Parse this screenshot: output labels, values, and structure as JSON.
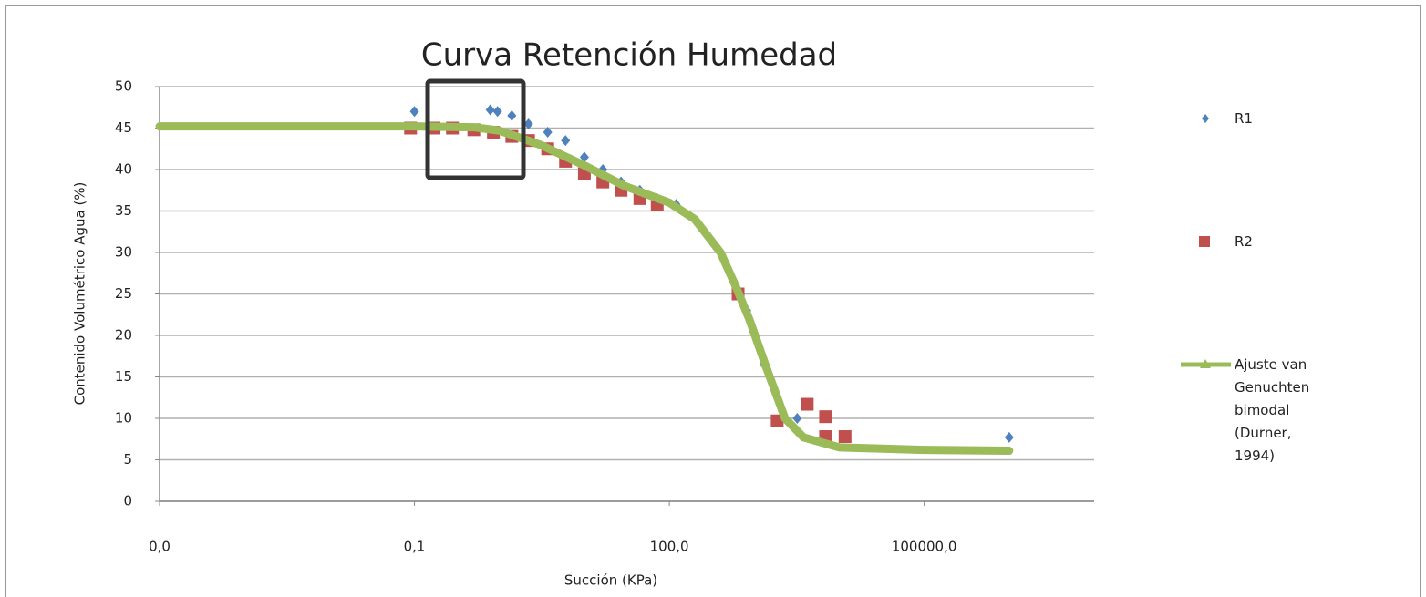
{
  "chart_data": {
    "type": "scatter",
    "title": "Curva Retención Humedad",
    "x_label": "Succión (KPa)",
    "y_label": "Contenido Volumétrico Agua (%)",
    "x_log": true,
    "xlim": [
      0.0001,
      10000000
    ],
    "ylim": [
      0,
      50
    ],
    "xticks": [
      {
        "value": 0.0001,
        "label": "0,0"
      },
      {
        "value": 0.1,
        "label": "0,1"
      },
      {
        "value": 100,
        "label": "100,0"
      },
      {
        "value": 100000,
        "label": "100000,0"
      }
    ],
    "yticks": [
      0,
      5,
      10,
      15,
      20,
      25,
      30,
      35,
      40,
      45,
      50
    ],
    "grid": true,
    "series": [
      {
        "name": "R1",
        "color": "#4f81bd",
        "style": "diamond",
        "x": [
          0.1,
          0.78,
          0.95,
          1.4,
          2.2,
          3.7,
          6,
          10,
          16.5,
          27,
          45,
          72,
          120,
          815,
          1300,
          1400,
          3200,
          1000000
        ],
        "values": [
          47,
          47.2,
          47,
          46.5,
          45.5,
          44.5,
          43.5,
          41.5,
          40,
          38.5,
          37.5,
          36.5,
          35.8,
          23,
          16.5,
          16,
          10,
          7.7
        ]
      },
      {
        "name": "R2",
        "color": "#c0504d",
        "style": "square",
        "x": [
          0.09,
          0.17,
          0.28,
          0.5,
          0.85,
          1.4,
          2.2,
          3.7,
          6,
          10,
          16.5,
          27,
          45,
          72,
          645,
          1860,
          4200,
          6900,
          6900,
          11700
        ],
        "values": [
          45,
          45,
          45,
          44.8,
          44.5,
          44,
          43.5,
          42.5,
          41,
          39.5,
          38.5,
          37.5,
          36.5,
          35.8,
          25,
          9.7,
          11.7,
          10.2,
          7.8,
          7.8
        ]
      },
      {
        "name": "Ajuste van Genuchten bimodal (Durner, 1994)",
        "color": "#9bbb59",
        "style": "line",
        "x": [
          0.0001,
          0.001,
          0.01,
          0.1,
          0.5,
          1,
          3,
          10,
          30,
          100,
          200,
          400,
          600,
          870,
          1400,
          2300,
          3800,
          10000,
          100000,
          1000000
        ],
        "values": [
          45.2,
          45.2,
          45.2,
          45.2,
          45.1,
          44.7,
          43,
          40.5,
          38,
          36,
          34,
          30,
          26,
          22,
          16,
          10,
          7.7,
          6.5,
          6.2,
          6.1
        ]
      }
    ]
  }
}
